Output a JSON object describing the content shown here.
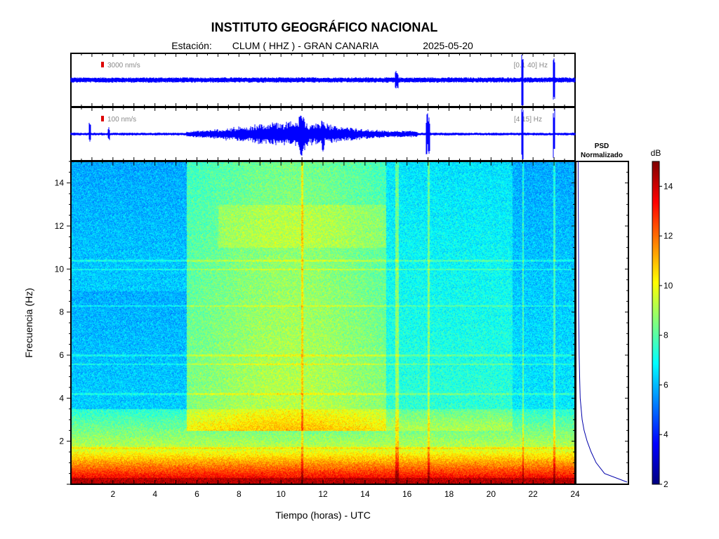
{
  "header": {
    "title": "INSTITUTO GEOGRÁFICO NACIONAL",
    "station_label": "Estación:",
    "station": "CLUM ( HHZ ) - GRAN CANARIA",
    "date": "2025-05-20"
  },
  "traces": [
    {
      "scale_label": "3000 nm/s",
      "band_label": "[0.1 40] Hz"
    },
    {
      "scale_label": "100 nm/s",
      "band_label": "[4 15] Hz"
    }
  ],
  "psd": {
    "title_line1": "PSD",
    "title_line2": "Normalizado"
  },
  "colorbar": {
    "unit": "dB",
    "ticks": [
      2,
      4,
      6,
      8,
      10,
      12,
      14
    ],
    "range": [
      2,
      15
    ]
  },
  "colors": {
    "trace": "#0000ff",
    "scale_marker": "#dd0000",
    "psd_line": "#0000aa"
  },
  "chart_data": {
    "type": "heatmap",
    "xlabel": "Tiempo (horas) - UTC",
    "ylabel": "Frecuencia  (Hz)",
    "xlim": [
      0,
      24
    ],
    "ylim": [
      0,
      15
    ],
    "xticks": [
      2,
      4,
      6,
      8,
      10,
      12,
      14,
      16,
      18,
      20,
      22,
      24
    ],
    "yticks": [
      2,
      4,
      6,
      8,
      10,
      12,
      14
    ],
    "activity_windows_hours": [
      [
        5.5,
        15.0
      ]
    ],
    "events_hours": [
      11.0,
      15.5,
      17.0,
      21.5,
      23.0
    ],
    "psd_profile": {
      "freq": [
        0.1,
        0.5,
        1,
        1.5,
        2,
        2.5,
        3,
        3.5,
        4,
        5,
        6,
        7,
        8,
        10,
        12,
        14,
        15
      ],
      "norm_power": [
        1.0,
        0.55,
        0.38,
        0.28,
        0.2,
        0.14,
        0.1,
        0.08,
        0.06,
        0.05,
        0.04,
        0.035,
        0.03,
        0.03,
        0.025,
        0.02,
        0.02
      ]
    }
  }
}
